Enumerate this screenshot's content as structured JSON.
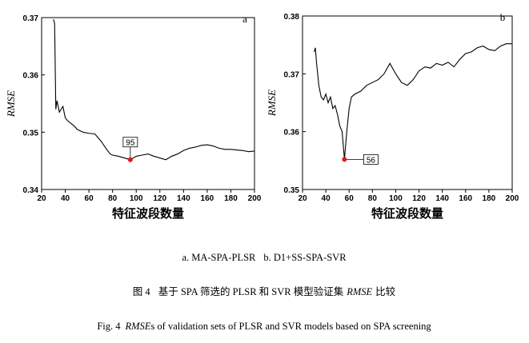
{
  "chart_data": [
    {
      "type": "line",
      "panel": "a",
      "ylabel": "RMSE",
      "xlabel": "特征波段数量",
      "xlim": [
        20,
        200
      ],
      "xticks": [
        20,
        40,
        60,
        80,
        100,
        120,
        140,
        160,
        180,
        200
      ],
      "ylim": [
        0.34,
        0.37
      ],
      "yticks": [
        0.34,
        0.35,
        0.36,
        0.37
      ],
      "series": [
        {
          "color": "#000000",
          "x": [
            30,
            31,
            32,
            33,
            35,
            38,
            40,
            42,
            45,
            48,
            50,
            55,
            60,
            65,
            70,
            75,
            78,
            80,
            85,
            90,
            95,
            100,
            105,
            110,
            115,
            120,
            125,
            130,
            135,
            140,
            145,
            150,
            155,
            160,
            165,
            170,
            175,
            180,
            185,
            190,
            195,
            200
          ],
          "values": [
            0.3697,
            0.369,
            0.354,
            0.3555,
            0.3535,
            0.3545,
            0.3525,
            0.352,
            0.3515,
            0.351,
            0.3505,
            0.35,
            0.3498,
            0.3497,
            0.3485,
            0.347,
            0.3462,
            0.346,
            0.3458,
            0.3455,
            0.3452,
            0.3458,
            0.346,
            0.3462,
            0.3458,
            0.3455,
            0.3452,
            0.3458,
            0.3462,
            0.3468,
            0.3472,
            0.3474,
            0.3477,
            0.3478,
            0.3476,
            0.3472,
            0.347,
            0.347,
            0.3469,
            0.3468,
            0.3466,
            0.3467
          ]
        }
      ],
      "marker": {
        "x": 95,
        "y": 0.3452,
        "color": "#e8141b"
      }
    },
    {
      "type": "line",
      "panel": "b",
      "ylabel": "RMSE",
      "xlabel": "特征波段数量",
      "xlim": [
        20,
        200
      ],
      "xticks": [
        20,
        40,
        60,
        80,
        100,
        120,
        140,
        160,
        180,
        200
      ],
      "ylim": [
        0.35,
        0.38
      ],
      "yticks": [
        0.35,
        0.36,
        0.37,
        0.38
      ],
      "series": [
        {
          "color": "#000000",
          "x": [
            30,
            31,
            32,
            34,
            36,
            38,
            40,
            42,
            44,
            46,
            48,
            50,
            52,
            54,
            56,
            58,
            60,
            62,
            65,
            70,
            75,
            80,
            85,
            90,
            95,
            100,
            105,
            110,
            115,
            120,
            125,
            130,
            135,
            140,
            145,
            150,
            155,
            160,
            165,
            170,
            175,
            180,
            185,
            190,
            195,
            200
          ],
          "values": [
            0.3738,
            0.3745,
            0.372,
            0.368,
            0.366,
            0.3655,
            0.3665,
            0.365,
            0.366,
            0.364,
            0.3645,
            0.363,
            0.361,
            0.36,
            0.3552,
            0.36,
            0.364,
            0.366,
            0.3665,
            0.367,
            0.368,
            0.3685,
            0.369,
            0.37,
            0.3718,
            0.37,
            0.3685,
            0.368,
            0.369,
            0.3705,
            0.3712,
            0.371,
            0.3718,
            0.3715,
            0.372,
            0.3712,
            0.3725,
            0.3735,
            0.3738,
            0.3745,
            0.3748,
            0.3742,
            0.374,
            0.3748,
            0.3752,
            0.3752
          ]
        }
      ],
      "marker": {
        "x": 56,
        "y": 0.3552,
        "color": "#e8141b"
      }
    }
  ],
  "captions": {
    "sub_a": "a. MA-SPA-PLSR",
    "sub_b": "b. D1+SS-SPA-SVR",
    "cn_label": "图 4",
    "cn_text": "基于 SPA 筛选的 PLSR 和 SVR 模型验证集",
    "cn_italic": "RMSE",
    "cn_end": "比较",
    "en_label": "Fig. 4",
    "en_italic": "RMSE",
    "en_text": "s of validation sets of PLSR and SVR models based on SPA screening"
  }
}
